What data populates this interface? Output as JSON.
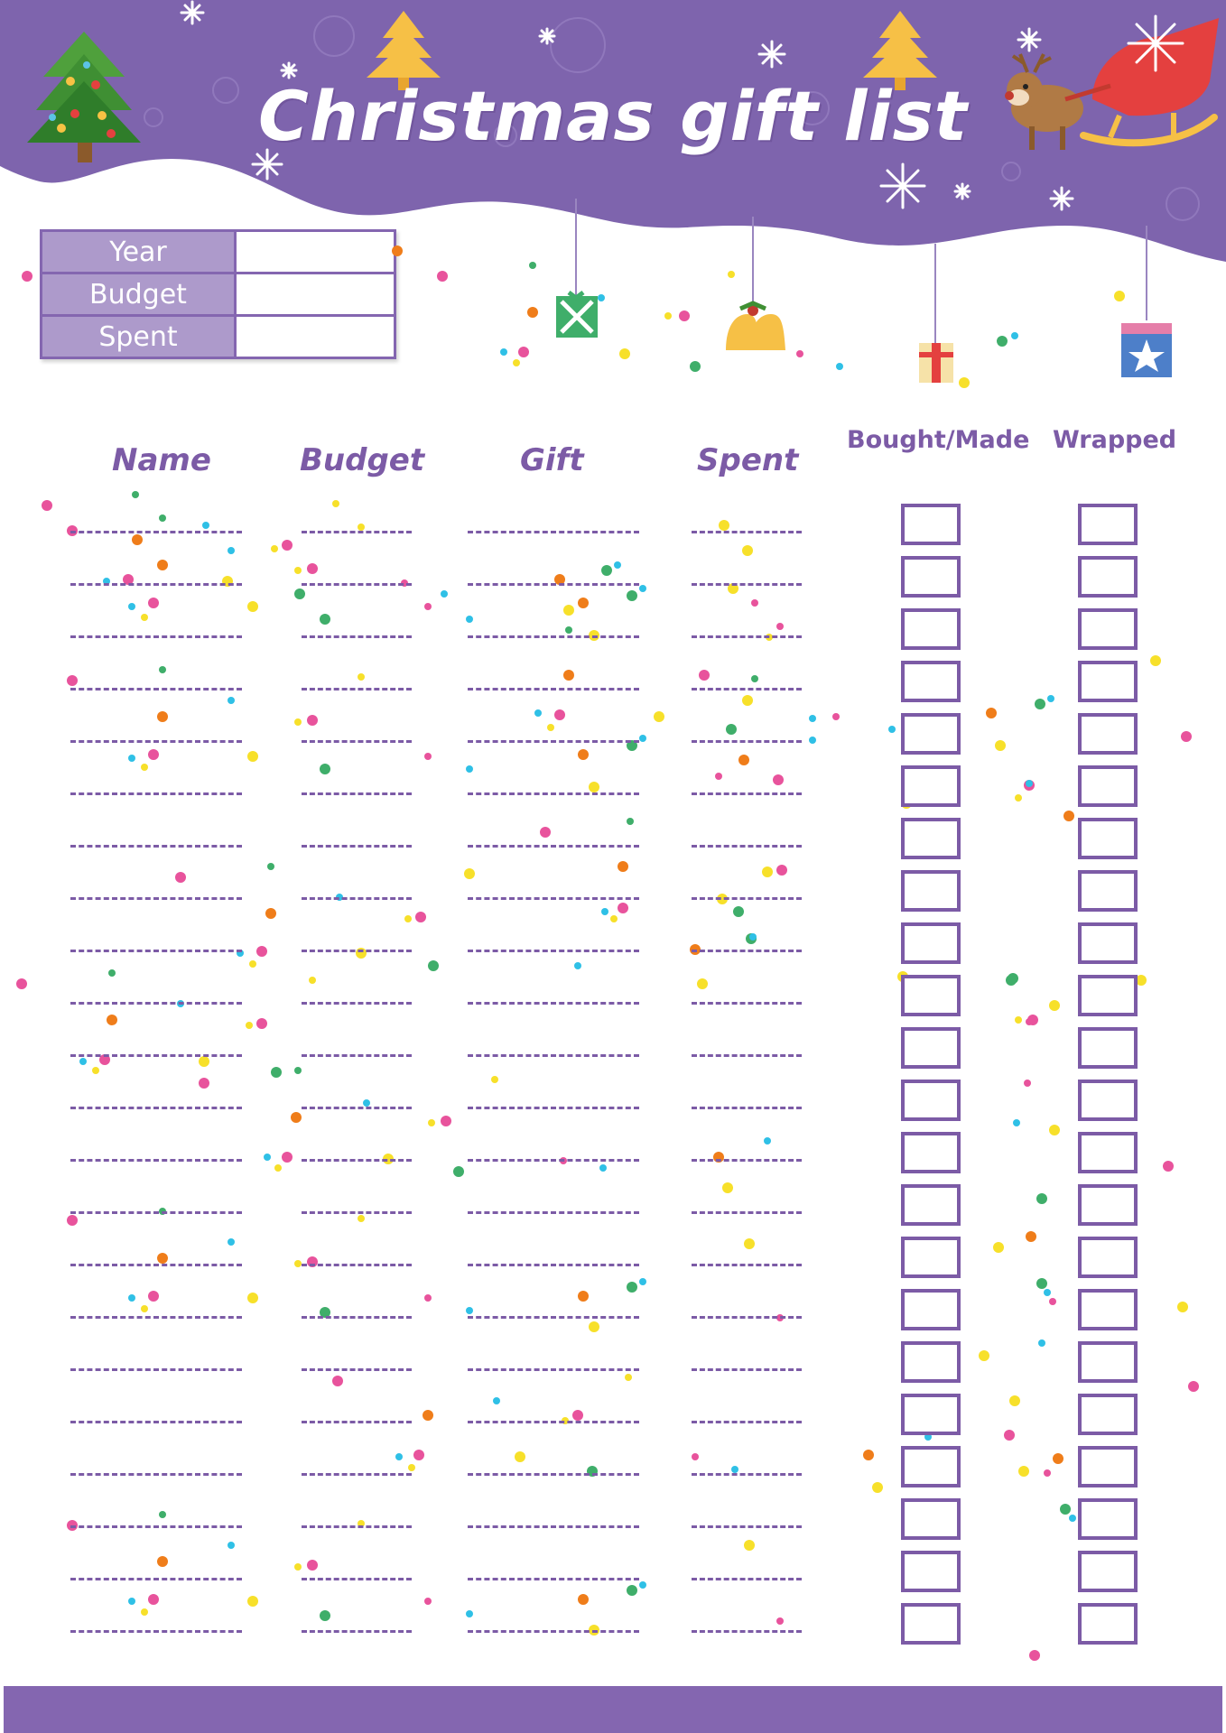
{
  "title": "Christmas gift list",
  "summary": {
    "rows": [
      {
        "label": "Year",
        "value": ""
      },
      {
        "label": "Budget",
        "value": ""
      },
      {
        "label": "Spent",
        "value": ""
      }
    ]
  },
  "columns": {
    "name": "Name",
    "budget": "Budget",
    "gift": "Gift",
    "spent": "Spent",
    "bought_made": "Bought/Made",
    "wrapped": "Wrapped"
  },
  "row_count": 22,
  "colors": {
    "purple": "#8466b0",
    "purple_dark": "#7c5ba6",
    "lavender": "#ad9acb",
    "gold": "#f7c244",
    "green": "#3fae6a",
    "red": "#e4403f"
  },
  "icons": [
    "christmas-tree-icon",
    "gold-tree-icon",
    "reindeer-sleigh-icon",
    "snowflake-icon",
    "gift-box-icon",
    "bell-icon"
  ]
}
